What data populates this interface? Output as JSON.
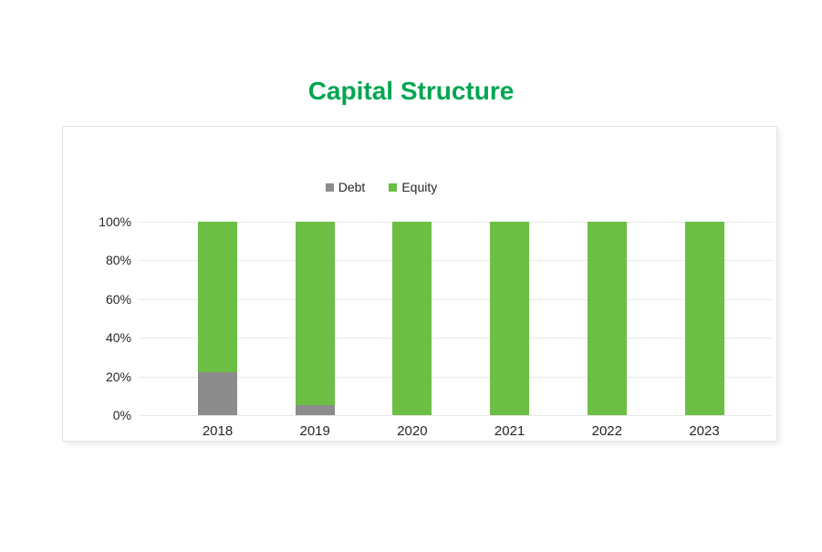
{
  "title": {
    "text": "Capital Structure",
    "color": "#00A651"
  },
  "colors": {
    "debt": "#8C8C8C",
    "equity": "#6CBE45",
    "grid": "#e8e8e8",
    "axis_text": "#262626",
    "panel_border": "#e4e4e4",
    "background": "#ffffff"
  },
  "chart_data": {
    "type": "bar",
    "stacked": true,
    "title": "Capital Structure",
    "categories": [
      "2018",
      "2019",
      "2020",
      "2021",
      "2022",
      "2023"
    ],
    "series": [
      {
        "name": "Debt",
        "color": "#8C8C8C",
        "values": [
          22,
          5,
          0,
          0,
          0,
          0
        ]
      },
      {
        "name": "Equity",
        "color": "#6CBE45",
        "values": [
          78,
          95,
          100,
          100,
          100,
          100
        ]
      }
    ],
    "xlabel": "",
    "ylabel": "",
    "ylim": [
      0,
      100
    ],
    "ytick_labels": [
      "0%",
      "20%",
      "40%",
      "60%",
      "80%",
      "100%"
    ],
    "grid": true,
    "legend_position": "top-center"
  }
}
